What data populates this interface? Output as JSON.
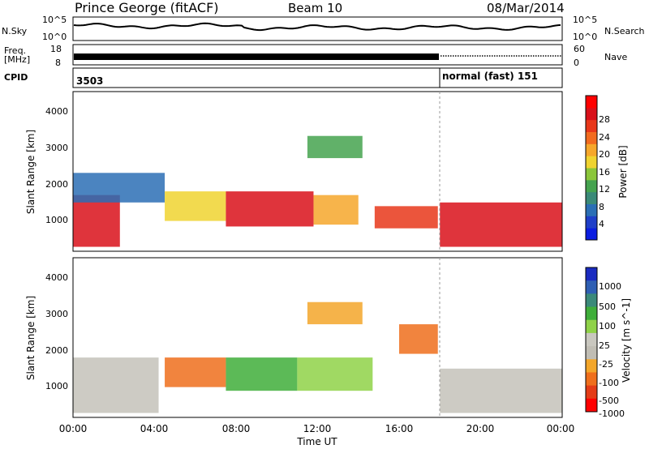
{
  "header": {
    "station": "Prince George (fitACF)",
    "beam": "Beam 10",
    "date": "08/Mar/2014"
  },
  "noise_panel": {
    "left_label": "N.Sky",
    "right_label": "N.Search",
    "left_ticks": [
      "10^5",
      "10^0"
    ],
    "right_ticks": [
      "10^5",
      "10^0"
    ]
  },
  "freq_panel": {
    "left_label_1": "Freq.",
    "left_label_2": "[MHz]",
    "right_label": "Nave",
    "left_ticks": [
      "18",
      "8"
    ],
    "right_ticks": [
      "60",
      "0"
    ]
  },
  "cpid_panel": {
    "label": "CPID",
    "programs": [
      {
        "text": "3503",
        "start_hour": 0.0
      },
      {
        "text": "normal (fast) 151",
        "start_hour": 18.0
      }
    ]
  },
  "colors": {
    "power": [
      "#0b1de0",
      "#1f3fc8",
      "#2b6fb5",
      "#3a8a78",
      "#45a34f",
      "#8bc63a",
      "#f0d330",
      "#f6a72b",
      "#f26b1f",
      "#e8371a",
      "#d9101a",
      "#ff0000"
    ],
    "velocity": [
      "#1a2bc0",
      "#2f5fb3",
      "#3b8a7a",
      "#3fae3a",
      "#8fd248",
      "#c9c7bf",
      "#c0bdb4",
      "#f3a62a",
      "#ef6f1c",
      "#e43c17",
      "#ff0000"
    ],
    "ground_scatter": "#c4c2ba"
  },
  "chart_data": [
    {
      "type": "heatmap",
      "name": "power",
      "title": "",
      "xlabel": "",
      "ylabel": "Slant Range [km]",
      "xlim": [
        0,
        24
      ],
      "ylim": [
        180,
        4500
      ],
      "x_tick_labels": [
        "00:00",
        "04:00",
        "08:00",
        "12:00",
        "16:00",
        "20:00",
        "00:00"
      ],
      "y_tick_labels": [
        "1000",
        "2000",
        "3000",
        "4000"
      ],
      "colorbar": {
        "label": "Power [dB]",
        "range": [
          0,
          32
        ],
        "tick_labels": [
          "4",
          "8",
          "12",
          "16",
          "20",
          "24",
          "28"
        ]
      },
      "regions": [
        {
          "x": [
            0.0,
            2.3
          ],
          "y": [
            300,
            1700
          ],
          "level": 0.9
        },
        {
          "x": [
            0.0,
            4.5
          ],
          "y": [
            1500,
            2300
          ],
          "level": 0.2
        },
        {
          "x": [
            4.5,
            7.5
          ],
          "y": [
            1000,
            1800
          ],
          "level": 0.5
        },
        {
          "x": [
            7.5,
            11.8
          ],
          "y": [
            850,
            1800
          ],
          "level": 0.9
        },
        {
          "x": [
            11.8,
            14.0
          ],
          "y": [
            900,
            1700
          ],
          "level": 0.6
        },
        {
          "x": [
            14.8,
            17.9
          ],
          "y": [
            800,
            1400
          ],
          "level": 0.8
        },
        {
          "x": [
            11.5,
            14.2
          ],
          "y": [
            2700,
            3300
          ],
          "level": 0.4
        },
        {
          "x": [
            18.0,
            24.0
          ],
          "y": [
            300,
            1500
          ],
          "level": 0.92
        }
      ]
    },
    {
      "type": "heatmap",
      "name": "velocity",
      "title": "",
      "xlabel": "Time UT",
      "ylabel": "Slant Range [km]",
      "xlim": [
        0,
        24
      ],
      "ylim": [
        180,
        4500
      ],
      "x_tick_labels": [
        "00:00",
        "04:00",
        "08:00",
        "12:00",
        "16:00",
        "20:00",
        "00:00"
      ],
      "y_tick_labels": [
        "1000",
        "2000",
        "3000",
        "4000"
      ],
      "colorbar": {
        "label": "Velocity [m s^-1]",
        "tick_labels": [
          "1000",
          "500",
          "100",
          "25",
          "-25",
          "-100",
          "-500",
          "-1000"
        ]
      },
      "regions": [
        {
          "x": [
            0.0,
            4.2
          ],
          "y": [
            300,
            1800
          ],
          "kind": "ground"
        },
        {
          "x": [
            4.5,
            7.5
          ],
          "y": [
            1000,
            1800
          ],
          "kind": "negative"
        },
        {
          "x": [
            7.5,
            11.0
          ],
          "y": [
            900,
            1800
          ],
          "kind": "positive"
        },
        {
          "x": [
            11.0,
            14.7
          ],
          "y": [
            900,
            1800
          ],
          "kind": "positive_light"
        },
        {
          "x": [
            11.5,
            14.2
          ],
          "y": [
            2700,
            3300
          ],
          "kind": "mixed"
        },
        {
          "x": [
            16.0,
            17.9
          ],
          "y": [
            1900,
            2700
          ],
          "kind": "negative"
        },
        {
          "x": [
            18.0,
            24.0
          ],
          "y": [
            300,
            1500
          ],
          "kind": "ground"
        }
      ]
    }
  ]
}
